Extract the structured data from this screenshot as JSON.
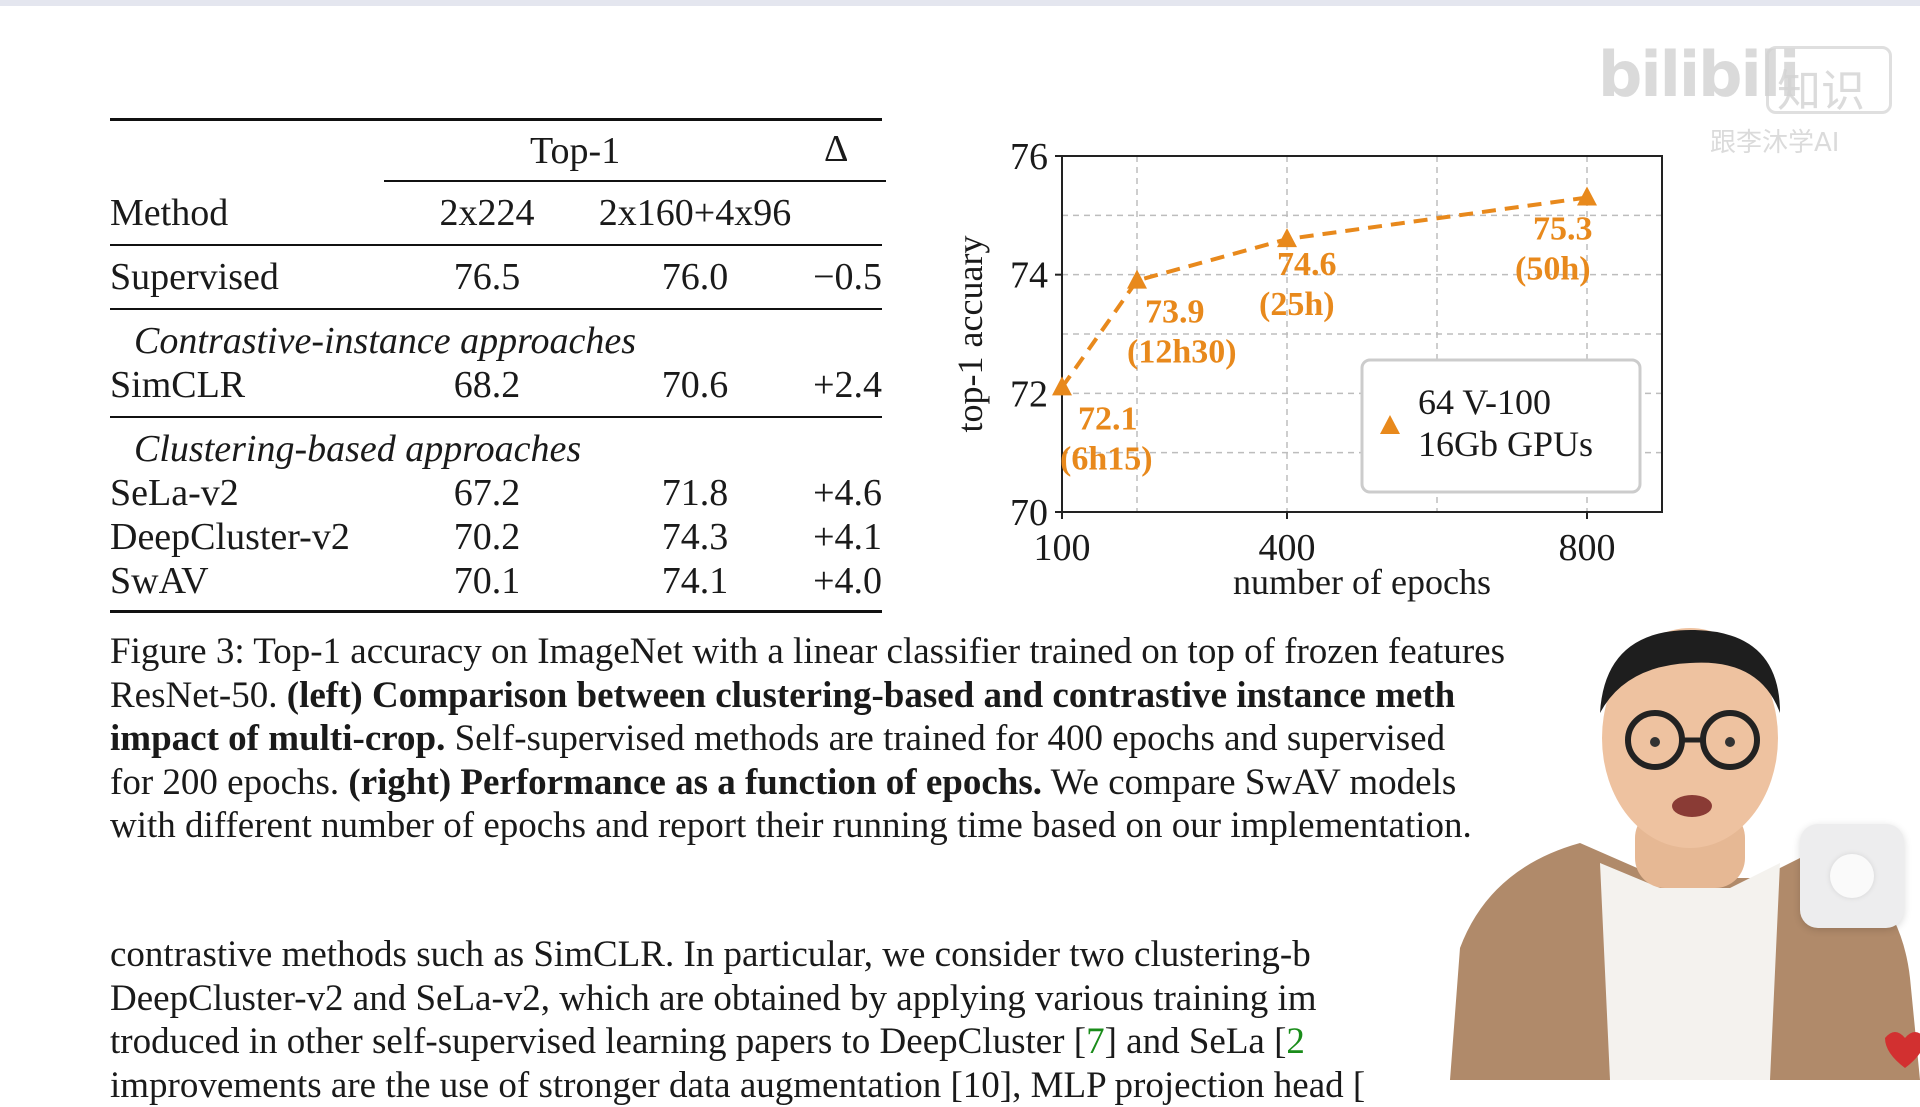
{
  "table": {
    "header": {
      "top1": "Top-1",
      "delta": "Δ",
      "method": "Method",
      "col_a": "2x224",
      "col_b": "2x160+4x96"
    },
    "rows": [
      {
        "method": "Supervised",
        "a": "76.5",
        "b": "76.0",
        "delta": "−0.5"
      }
    ],
    "section_contrastive": "Contrastive-instance approaches",
    "contrastive_rows": [
      {
        "method": "SimCLR",
        "a": "68.2",
        "b": "70.6",
        "delta": "+2.4"
      }
    ],
    "section_clustering": "Clustering-based approaches",
    "clustering_rows": [
      {
        "method": "SeLa-v2",
        "a": "67.2",
        "b": "71.8",
        "delta": "+4.6"
      },
      {
        "method": "DeepCluster-v2",
        "a": "70.2",
        "b": "74.3",
        "delta": "+4.1"
      },
      {
        "method": "SwAV",
        "a": "70.1",
        "b": "74.1",
        "delta": "+4.0"
      }
    ]
  },
  "chart_data": {
    "type": "line",
    "xlabel": "number of epochs",
    "ylabel": "top-1 accuary",
    "x_ticks": [
      "100",
      "400",
      "800"
    ],
    "y_ticks": [
      "70",
      "72",
      "74",
      "76"
    ],
    "xlim": [
      100,
      900
    ],
    "ylim": [
      70,
      76
    ],
    "grid": true,
    "legend_position": "bottom-right",
    "series": [
      {
        "name": "64 V-100 16Gb GPUs",
        "legend_lines": [
          "64 V-100",
          "16Gb GPUs"
        ],
        "color": "#e8891c",
        "marker": "triangle",
        "style": "dashed",
        "points": [
          {
            "x": 100,
            "y": 72.1,
            "label": "72.1",
            "time": "(6h15)"
          },
          {
            "x": 200,
            "y": 73.9,
            "label": "73.9",
            "time": "(12h30)"
          },
          {
            "x": 400,
            "y": 74.6,
            "label": "74.6",
            "time": "(25h)"
          },
          {
            "x": 800,
            "y": 75.3,
            "label": "75.3",
            "time": "(50h)"
          }
        ]
      }
    ]
  },
  "caption": {
    "line1": "Figure 3: Top-1 accuracy on ImageNet with a linear classifier trained on top of frozen features",
    "line2_pre": "ResNet-50. ",
    "line2_bold": "(left) Comparison between clustering-based and contrastive instance meth",
    "line3_bold": "impact of multi-crop.",
    "line3_rest": " Self-supervised methods are trained for 400 epochs and supervised",
    "line4_pre": "for 200 epochs. ",
    "line4_bold": "(right) Performance as a function of epochs.",
    "line4_rest": " We compare SwAV models",
    "line5": "with different number of epochs and report their running time based on our implementation."
  },
  "body": {
    "line1": "contrastive methods such as SimCLR. In particular, we consider two clustering-b",
    "line2": "DeepCluster-v2 and SeLa-v2, which are obtained by applying various training im",
    "line3_pre": "troduced in other self-supervised learning papers to DeepCluster [",
    "line3_ref1": "7",
    "line3_mid": "] and SeLa [",
    "line3_ref2": "2",
    "line4": "improvements are the use of stronger data augmentation [10], MLP projection head ["
  },
  "watermark": {
    "logo": "bilibili",
    "box_text": "知识",
    "sub": "跟李沐学AI"
  }
}
